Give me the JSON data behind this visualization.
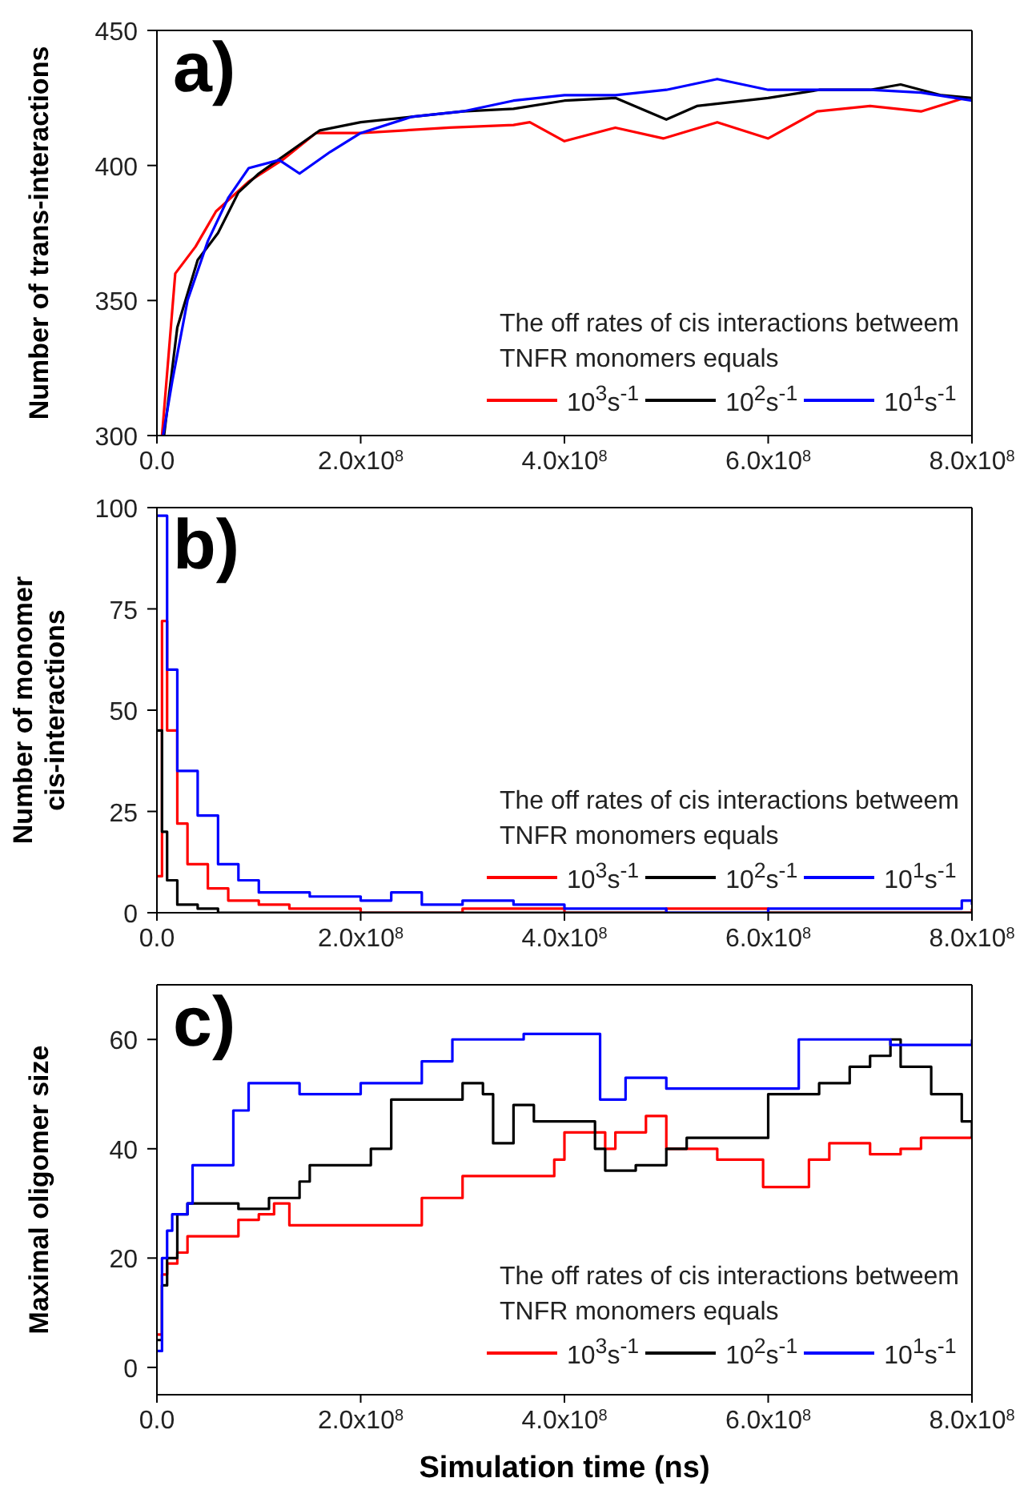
{
  "chart_data": [
    {
      "type": "line",
      "title": "a)",
      "ylabel": "Number of trans-interactions",
      "legend_title": "The off rates of cis interactions betweem TNFR monomers equals",
      "legend": "bottom right",
      "xlim": [
        0,
        800000000.0
      ],
      "ylim": [
        300,
        450
      ],
      "yticks": [
        300,
        350,
        400,
        450
      ],
      "xticks": [
        {
          "value": 0,
          "label": "0.0"
        },
        {
          "value": 200000000.0,
          "label": "2.0x10$^{8}$"
        },
        {
          "value": 400000000.0,
          "label": "4.0x10$^{8}$"
        },
        {
          "value": 600000000.0,
          "label": "6.0x10$^{8}$"
        },
        {
          "value": 800000000.0,
          "label": "8.0x10$^{8}$"
        }
      ],
      "series": [
        {
          "name": "10$^{3}$s$^{-1}$",
          "color": "#ff0000",
          "x": [
            5000000.0,
            18000000.0,
            38000000.0,
            58000000.0,
            90000000.0,
            123000000.0,
            156000000.0,
            200000000.0,
            287000000.0,
            350000000.0,
            366000000.0,
            400000000.0,
            450000000.0,
            497000000.0,
            550000000.0,
            600000000.0,
            648000000.0,
            700000000.0,
            750000000.0,
            793000000.0
          ],
          "values": [
            300,
            360,
            370,
            383,
            394,
            402,
            412,
            412,
            414,
            415,
            416,
            409,
            414,
            410,
            416,
            410,
            420,
            422,
            420,
            425
          ]
        },
        {
          "name": "10$^{2}$s$^{-1}$",
          "color": "#000000",
          "x": [
            7000000.0,
            20000000.0,
            40000000.0,
            60000000.0,
            80000000.0,
            100000000.0,
            130000000.0,
            160000000.0,
            200000000.0,
            250000000.0,
            300000000.0,
            350000000.0,
            400000000.0,
            450000000.0,
            500000000.0,
            530000000.0,
            600000000.0,
            650000000.0,
            700000000.0,
            730000000.0,
            770000000.0,
            800000000.0
          ],
          "values": [
            300,
            340,
            365,
            375,
            390,
            397,
            405,
            413,
            416,
            418,
            420,
            421,
            424,
            425,
            417,
            422,
            425,
            428,
            428,
            430,
            426,
            425
          ]
        },
        {
          "name": "10$^{1}$s$^{-1}$",
          "color": "#0000ff",
          "x": [
            6000000.0,
            15000000.0,
            30000000.0,
            50000000.0,
            70000000.0,
            90000000.0,
            120000000.0,
            140000000.0,
            170000000.0,
            200000000.0,
            250000000.0,
            300000000.0,
            350000000.0,
            400000000.0,
            450000000.0,
            500000000.0,
            550000000.0,
            600000000.0,
            650000000.0,
            700000000.0,
            750000000.0,
            800000000.0
          ],
          "values": [
            300,
            320,
            350,
            372,
            388,
            399,
            402,
            397,
            405,
            412,
            418,
            420,
            424,
            426,
            426,
            428,
            432,
            428,
            428,
            428,
            427,
            424
          ]
        }
      ]
    },
    {
      "type": "step",
      "title": "b)",
      "ylabel": "Number of monomer cis-interactions",
      "legend_title": "The off rates of cis interactions betweem TNFR monomers equals",
      "legend": "bottom right",
      "xlim": [
        0,
        800000000.0
      ],
      "ylim": [
        0,
        100
      ],
      "yticks": [
        0,
        25,
        50,
        75,
        100
      ],
      "xticks": [
        {
          "value": 0,
          "label": "0.0"
        },
        {
          "value": 200000000.0,
          "label": "2.0x10$^{8}$"
        },
        {
          "value": 400000000.0,
          "label": "4.0x10$^{8}$"
        },
        {
          "value": 600000000.0,
          "label": "6.0x10$^{8}$"
        },
        {
          "value": 800000000.0,
          "label": "8.0x10$^{8}$"
        }
      ],
      "series": [
        {
          "name": "10$^{3}$s$^{-1}$",
          "color": "#ff0000",
          "x": [
            0,
            5000000.0,
            10000000.0,
            20000000.0,
            30000000.0,
            50000000.0,
            70000000.0,
            100000000.0,
            130000000.0,
            200000000.0,
            300000000.0,
            400000000.0,
            500000000.0,
            600000000.0,
            700000000.0,
            800000000.0
          ],
          "values": [
            9,
            72,
            45,
            22,
            12,
            6,
            3,
            2,
            1,
            0,
            1,
            0,
            1,
            0,
            0,
            1
          ]
        },
        {
          "name": "10$^{2}$s$^{-1}$",
          "color": "#000000",
          "x": [
            0,
            5000000.0,
            10000000.0,
            20000000.0,
            40000000.0,
            60000000.0,
            800000000.0
          ],
          "values": [
            45,
            20,
            8,
            2,
            1,
            0,
            0
          ]
        },
        {
          "name": "10$^{1}$s$^{-1}$",
          "color": "#0000ff",
          "x": [
            0,
            10000000.0,
            20000000.0,
            40000000.0,
            60000000.0,
            80000000.0,
            100000000.0,
            150000000.0,
            200000000.0,
            230000000.0,
            260000000.0,
            300000000.0,
            350000000.0,
            400000000.0,
            500000000.0,
            600000000.0,
            700000000.0,
            770000000.0,
            790000000.0,
            800000000.0
          ],
          "values": [
            98,
            60,
            35,
            24,
            12,
            8,
            5,
            4,
            3,
            5,
            2,
            3,
            2,
            1,
            0,
            1,
            1,
            1,
            3,
            2
          ]
        }
      ]
    },
    {
      "type": "step",
      "title": "c)",
      "xlabel": "Simulation time (ns)",
      "ylabel": "Maximal oligomer size",
      "legend_title": "The off rates of cis interactions betweem TNFR monomers equals",
      "legend": "bottom right",
      "xlim": [
        0,
        800000000.0
      ],
      "ylim": [
        -5,
        70
      ],
      "yticks": [
        0,
        20,
        40,
        60
      ],
      "xticks": [
        {
          "value": 0,
          "label": "0.0"
        },
        {
          "value": 200000000.0,
          "label": "2.0x10$^{8}$"
        },
        {
          "value": 400000000.0,
          "label": "4.0x10$^{8}$"
        },
        {
          "value": 600000000.0,
          "label": "6.0x10$^{8}$"
        },
        {
          "value": 800000000.0,
          "label": "8.0x10$^{8}$"
        }
      ],
      "series": [
        {
          "name": "10$^{3}$s$^{-1}$",
          "color": "#ff0000",
          "x": [
            0,
            5000000.0,
            10000000.0,
            20000000.0,
            30000000.0,
            60000000.0,
            80000000.0,
            100000000.0,
            115000000.0,
            130000000.0,
            250000000.0,
            260000000.0,
            300000000.0,
            350000000.0,
            390000000.0,
            400000000.0,
            440000000.0,
            450000000.0,
            480000000.0,
            500000000.0,
            550000000.0,
            590000000.0,
            595000000.0,
            630000000.0,
            640000000.0,
            660000000.0,
            700000000.0,
            730000000.0,
            750000000.0,
            800000000.0
          ],
          "values": [
            6,
            17,
            19,
            21,
            24,
            24,
            27,
            28,
            30,
            26,
            26,
            31,
            35,
            35,
            38,
            43,
            40,
            43,
            46,
            40,
            38,
            38,
            33,
            33,
            38,
            41,
            39,
            40,
            42,
            42
          ]
        },
        {
          "name": "10$^{2}$s$^{-1}$",
          "color": "#000000",
          "x": [
            0,
            5000000.0,
            10000000.0,
            20000000.0,
            30000000.0,
            60000000.0,
            80000000.0,
            110000000.0,
            140000000.0,
            150000000.0,
            190000000.0,
            210000000.0,
            230000000.0,
            270000000.0,
            300000000.0,
            320000000.0,
            330000000.0,
            350000000.0,
            370000000.0,
            430000000.0,
            440000000.0,
            470000000.0,
            500000000.0,
            520000000.0,
            580000000.0,
            600000000.0,
            650000000.0,
            680000000.0,
            700000000.0,
            720000000.0,
            730000000.0,
            760000000.0,
            790000000.0,
            800000000.0
          ],
          "values": [
            5,
            15,
            20,
            28,
            30,
            30,
            29,
            31,
            34,
            37,
            37,
            40,
            49,
            49,
            52,
            50,
            41,
            48,
            45,
            40,
            36,
            37,
            40,
            42,
            42,
            50,
            52,
            55,
            57,
            60,
            55,
            50,
            45,
            42
          ]
        },
        {
          "name": "10$^{1}$s$^{-1}$",
          "color": "#0000ff",
          "x": [
            0,
            5000000.0,
            10000000.0,
            15000000.0,
            30000000.0,
            35000000.0,
            65000000.0,
            75000000.0,
            90000000.0,
            140000000.0,
            200000000.0,
            250000000.0,
            260000000.0,
            290000000.0,
            350000000.0,
            360000000.0,
            430000000.0,
            435000000.0,
            460000000.0,
            500000000.0,
            600000000.0,
            630000000.0,
            700000000.0,
            720000000.0,
            800000000.0
          ],
          "values": [
            3,
            20,
            25,
            28,
            30,
            37,
            37,
            47,
            52,
            50,
            52,
            52,
            56,
            60,
            60,
            61,
            61,
            49,
            53,
            51,
            51,
            60,
            60,
            59,
            60
          ]
        }
      ]
    }
  ]
}
